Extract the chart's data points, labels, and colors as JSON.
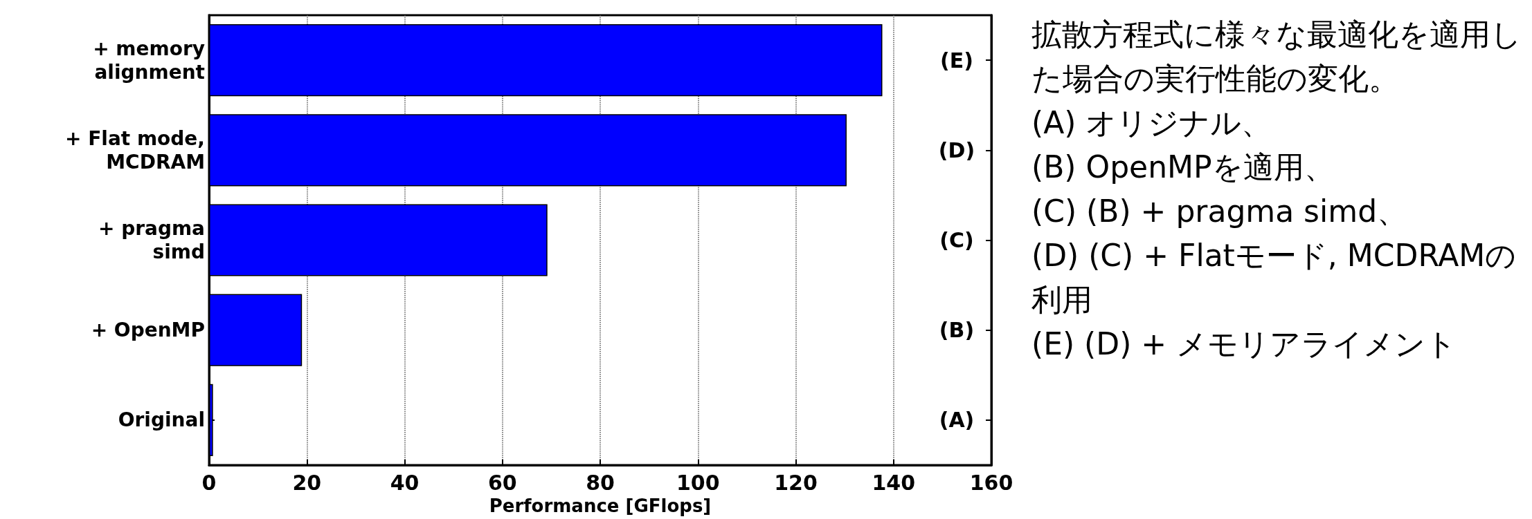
{
  "chart_data": {
    "type": "bar",
    "orientation": "horizontal",
    "categories": [
      "+ memory\nalignment",
      "+ Flat mode,\nMCDRAM",
      "+ pragma\nsimd",
      "+ OpenMP",
      "Original"
    ],
    "values": [
      137.7,
      130.4,
      69.2,
      19.0,
      0.8
    ],
    "color": "#0000ff",
    "xlabel": "Performance [GFlops]",
    "xlim": [
      0,
      160
    ],
    "xticks": [
      0,
      20,
      40,
      60,
      80,
      100,
      120,
      140,
      160
    ],
    "grid": "x",
    "annotations": [
      "(E)",
      "(D)",
      "(C)",
      "(B)",
      "(A)",
      "拡散方程式に様々な最適化を適用した場合の実行性能の変化。",
      "(A) オリジナル、",
      "(B) OpenMPを適用、",
      "(C) (B) + pragma simd、",
      "(D) (C) + Flatモード, MCDRAMの利用",
      "(E) (D) + メモリアライメント"
    ]
  }
}
